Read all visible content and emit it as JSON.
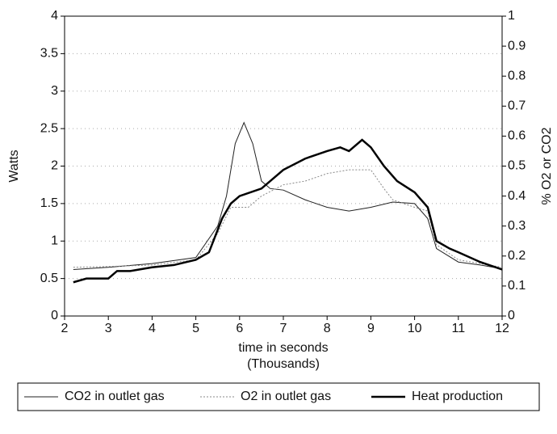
{
  "chart_data": {
    "type": "line",
    "x_label": [
      "time in seconds",
      "(Thousands)"
    ],
    "y_label": "Watts",
    "y2_label": "% O2 or CO2",
    "xlim": [
      2,
      12
    ],
    "xticks": [
      2,
      3,
      4,
      5,
      6,
      7,
      8,
      9,
      10,
      11,
      12
    ],
    "ylim": [
      0,
      4
    ],
    "yticks": [
      0,
      0.5,
      1,
      1.5,
      2,
      2.5,
      3,
      3.5,
      4
    ],
    "y2lim": [
      0,
      1
    ],
    "y2ticks": [
      0,
      0.1,
      0.2,
      0.3,
      0.4,
      0.5,
      0.6,
      0.7,
      0.8,
      0.9,
      1
    ],
    "grid": true,
    "legend": "bottom",
    "series": [
      {
        "name": "CO2 in outlet gas",
        "color": "#222222",
        "width": 1,
        "dash": false,
        "axis": "y2",
        "x": [
          2.2,
          3,
          4,
          5,
          5.5,
          5.7,
          5.9,
          6.1,
          6.3,
          6.5,
          6.7,
          7,
          7.5,
          8,
          8.5,
          9,
          9.5,
          10,
          10.3,
          10.5,
          11,
          11.5,
          12
        ],
        "values": [
          0.155,
          0.1625,
          0.175,
          0.195,
          0.3,
          0.4,
          0.575,
          0.645,
          0.575,
          0.45,
          0.425,
          0.42,
          0.3875,
          0.3625,
          0.35,
          0.3625,
          0.38,
          0.375,
          0.325,
          0.225,
          0.18,
          0.17,
          0.1575
        ]
      },
      {
        "name": "O2 in outlet gas",
        "color": "#888888",
        "width": 1,
        "dash": true,
        "axis": "y2",
        "x": [
          2.2,
          3,
          4,
          5,
          5.5,
          5.8,
          6.2,
          6.5,
          7,
          7.5,
          8,
          8.5,
          9,
          9.3,
          9.5,
          10,
          10.3,
          10.5,
          11,
          11.5,
          12
        ],
        "values": [
          0.1625,
          0.165,
          0.17,
          0.1875,
          0.275,
          0.3625,
          0.3625,
          0.4,
          0.4375,
          0.45,
          0.475,
          0.4875,
          0.4875,
          0.425,
          0.3875,
          0.3625,
          0.35,
          0.2375,
          0.1875,
          0.175,
          0.1625
        ]
      },
      {
        "name": "Heat production",
        "color": "#000000",
        "width": 2.5,
        "dash": false,
        "x": [
          2.2,
          2.5,
          3,
          3.2,
          3.5,
          4,
          4.5,
          5,
          5.3,
          5.6,
          5.8,
          6,
          6.5,
          7,
          7.5,
          8,
          8.3,
          8.5,
          8.8,
          9,
          9.3,
          9.6,
          10,
          10.3,
          10.5,
          10.8,
          11,
          11.5,
          12
        ],
        "values": [
          0.45,
          0.5,
          0.5,
          0.6,
          0.6,
          0.65,
          0.68,
          0.75,
          0.85,
          1.3,
          1.5,
          1.6,
          1.7,
          1.95,
          2.1,
          2.2,
          2.25,
          2.2,
          2.35,
          2.25,
          2.0,
          1.8,
          1.65,
          1.45,
          1.0,
          0.9,
          0.85,
          0.72,
          0.62
        ]
      }
    ]
  }
}
